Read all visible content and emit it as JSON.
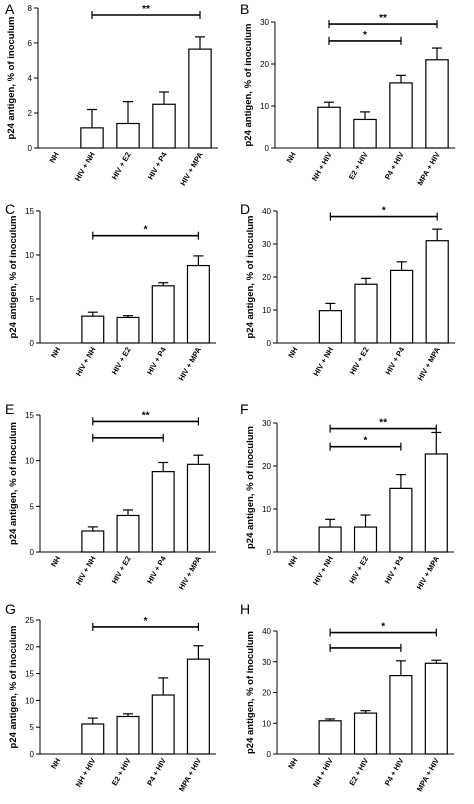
{
  "figure": {
    "panels": [
      "A",
      "B",
      "C",
      "D",
      "E",
      "F",
      "G",
      "H"
    ]
  },
  "chart_data": [
    {
      "panel": "A",
      "type": "bar",
      "ylabel": "p24 antigen, % of inoculum",
      "categories": [
        "NH",
        "HIV + NH",
        "HIV + E2",
        "HIV + P4",
        "HIV + MPA"
      ],
      "values": [
        0,
        1.15,
        1.4,
        2.5,
        5.65
      ],
      "errors": [
        0,
        1.05,
        1.25,
        0.7,
        0.7
      ],
      "ylim": [
        0,
        8
      ],
      "yticks": [
        0,
        2,
        4,
        6,
        8
      ],
      "significance": [
        {
          "from": 1,
          "to": 4,
          "label": "**",
          "y": 7.6
        }
      ]
    },
    {
      "panel": "B",
      "type": "bar",
      "ylabel": "p24 antigen, % of inoculum",
      "categories": [
        "NH",
        "NH + HIV",
        "E2 + HIV",
        "P4 + HIV",
        "MPA + HIV"
      ],
      "values": [
        0,
        9.7,
        6.8,
        15.5,
        21
      ],
      "errors": [
        0,
        1.2,
        1.8,
        1.8,
        2.8
      ],
      "ylim": [
        0,
        30
      ],
      "yticks": [
        0,
        10,
        20,
        30
      ],
      "significance": [
        {
          "from": 1,
          "to": 4,
          "label": "**",
          "y": 29.5
        },
        {
          "from": 1,
          "to": 3,
          "label": "*",
          "y": 25.5
        }
      ]
    },
    {
      "panel": "C",
      "type": "bar",
      "ylabel": "p24 antigen, % of inoculum",
      "categories": [
        "NH",
        "HIV + NH",
        "HIV + E2",
        "HIV + P4",
        "HIV + MPA"
      ],
      "values": [
        0,
        3.05,
        2.9,
        6.5,
        8.8
      ],
      "errors": [
        0,
        0.45,
        0.2,
        0.35,
        1.1
      ],
      "ylim": [
        0,
        15
      ],
      "yticks": [
        0,
        5,
        10,
        15
      ],
      "significance": [
        {
          "from": 1,
          "to": 4,
          "label": "*",
          "y": 12.2
        }
      ]
    },
    {
      "panel": "D",
      "type": "bar",
      "ylabel": "p24 antigen, % of inoculum",
      "categories": [
        "NH",
        "HIV + NH",
        "HIV + E2",
        "HIV + P4",
        "HIV + MPA"
      ],
      "values": [
        0,
        9.8,
        17.8,
        22,
        31
      ],
      "errors": [
        0,
        2.2,
        1.8,
        2.6,
        3.5
      ],
      "ylim": [
        0,
        40
      ],
      "yticks": [
        0,
        10,
        20,
        30,
        40
      ],
      "significance": [
        {
          "from": 1,
          "to": 4,
          "label": "*",
          "y": 38.3
        }
      ]
    },
    {
      "panel": "E",
      "type": "bar",
      "ylabel": "p24 antigen, % of inoculum",
      "categories": [
        "NH",
        "HIV + NH",
        "HIV + E2",
        "HIV + P4",
        "HIV + MPA"
      ],
      "values": [
        0,
        2.3,
        4,
        8.8,
        9.6
      ],
      "errors": [
        0,
        0.45,
        0.6,
        1,
        1
      ],
      "ylim": [
        0,
        15
      ],
      "yticks": [
        0,
        5,
        10,
        15
      ],
      "significance": [
        {
          "from": 1,
          "to": 4,
          "label": "**",
          "y": 14.3
        },
        {
          "from": 1,
          "to": 3,
          "label": "",
          "y": 12.5
        }
      ]
    },
    {
      "panel": "F",
      "type": "bar",
      "ylabel": "p24 antigen, % of inoculum",
      "categories": [
        "NH",
        "HIV + NH",
        "HIV + E2",
        "HIV + P4",
        "HIV + MPA"
      ],
      "values": [
        0,
        5.8,
        5.8,
        14.8,
        22.8
      ],
      "errors": [
        0,
        1.8,
        2.8,
        3.2,
        5
      ],
      "ylim": [
        0,
        30
      ],
      "yticks": [
        0,
        10,
        20,
        30
      ],
      "significance": [
        {
          "from": 1,
          "to": 4,
          "label": "**",
          "y": 28.7
        },
        {
          "from": 1,
          "to": 3,
          "label": "*",
          "y": 24.5
        }
      ]
    },
    {
      "panel": "G",
      "type": "bar",
      "ylabel": "p24 antigen, % of inoculum",
      "categories": [
        "NH",
        "NH + HIV",
        "E2 + HIV",
        "P4 + HIV",
        "MPA + HIV"
      ],
      "values": [
        0,
        5.6,
        7,
        11,
        17.7
      ],
      "errors": [
        0,
        1.1,
        0.5,
        3.2,
        2.5
      ],
      "ylim": [
        0,
        25
      ],
      "yticks": [
        0,
        5,
        10,
        15,
        20,
        25
      ],
      "significance": [
        {
          "from": 1,
          "to": 4,
          "label": "*",
          "y": 23.7
        }
      ]
    },
    {
      "panel": "H",
      "type": "bar",
      "ylabel": "p24 antigen, % of inoculum",
      "categories": [
        "NH",
        "NH + HIV",
        "E2 + HIV",
        "P4 + HIV",
        "MPA + HIV"
      ],
      "values": [
        0,
        10.8,
        13.3,
        25.5,
        29.5
      ],
      "errors": [
        0,
        0.6,
        0.8,
        4.8,
        1
      ],
      "ylim": [
        0,
        40
      ],
      "yticks": [
        0,
        10,
        20,
        30,
        40
      ],
      "significance": [
        {
          "from": 1,
          "to": 4,
          "label": "*",
          "y": 39.5
        },
        {
          "from": 1,
          "to": 3,
          "label": "",
          "y": 34.5
        }
      ]
    }
  ]
}
